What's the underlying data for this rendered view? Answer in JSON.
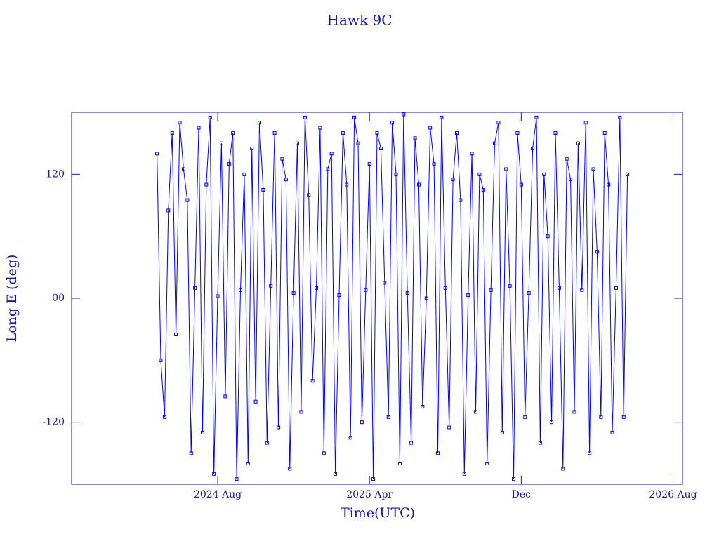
{
  "chart_data": {
    "type": "line",
    "title": "Hawk 9C",
    "x_label": "Time(UTC)",
    "y_label": "Long E (deg)",
    "xlim": [
      -0.7,
      31.5
    ],
    "xticks": [
      {
        "value": 7,
        "label": "2024 Aug"
      },
      {
        "value": 15,
        "label": "2025 Apr"
      },
      {
        "value": 23,
        "label": "Dec"
      },
      {
        "value": 31,
        "label": "2026 Aug"
      }
    ],
    "ylim": [
      -180,
      180
    ],
    "yticks": [
      -120,
      {
        "value": 0,
        "label": "00"
      },
      120
    ],
    "markers": true,
    "x": [
      3.8,
      4,
      4.2,
      4.4,
      4.6,
      4.8,
      5,
      5.2,
      5.4,
      5.6,
      5.8,
      6,
      6.2,
      6.4,
      6.6,
      6.8,
      7,
      7.2,
      7.4,
      7.6,
      7.8,
      8,
      8.2,
      8.4,
      8.6,
      8.8,
      9,
      9.2,
      9.4,
      9.6,
      9.8,
      10,
      10.2,
      10.4,
      10.6,
      10.8,
      11,
      11.2,
      11.4,
      11.6,
      11.8,
      12,
      12.2,
      12.4,
      12.6,
      12.8,
      13,
      13.2,
      13.4,
      13.6,
      13.8,
      14,
      14.2,
      14.4,
      14.6,
      14.8,
      15,
      15.2,
      15.4,
      15.6,
      15.8,
      16,
      16.2,
      16.4,
      16.6,
      16.8,
      17,
      17.2,
      17.4,
      17.6,
      17.8,
      18,
      18.2,
      18.4,
      18.6,
      18.8,
      19,
      19.2,
      19.4,
      19.6,
      19.8,
      20,
      20.2,
      20.4,
      20.6,
      20.8,
      21,
      21.2,
      21.4,
      21.6,
      21.8,
      22,
      22.2,
      22.4,
      22.6,
      22.8,
      23,
      23.2,
      23.4,
      23.6,
      23.8,
      24,
      24.2,
      24.4,
      24.6,
      24.8,
      25,
      25.2,
      25.4,
      25.6,
      25.8,
      26,
      26.2,
      26.4,
      26.6,
      26.8,
      27,
      27.2,
      27.4,
      27.6,
      27.8,
      28,
      28.2,
      28.4,
      28.6
    ],
    "series": [
      {
        "color": "#0000ff",
        "values": [
          140,
          -60,
          -115,
          85,
          160,
          -35,
          170,
          125,
          95,
          -150,
          10,
          165,
          -130,
          110,
          175,
          -170,
          2,
          150,
          -95,
          130,
          160,
          -175,
          8,
          120,
          -160,
          145,
          -100,
          170,
          105,
          -140,
          12,
          160,
          -125,
          135,
          115,
          -165,
          5,
          150,
          -110,
          175,
          100,
          -80,
          10,
          165,
          -150,
          125,
          140,
          -170,
          3,
          160,
          110,
          -135,
          175,
          150,
          -120,
          8,
          130,
          -175,
          160,
          145,
          15,
          -115,
          170,
          120,
          -160,
          178,
          5,
          -140,
          155,
          110,
          -105,
          0,
          165,
          130,
          -150,
          175,
          10,
          -125,
          115,
          160,
          95,
          -170,
          3,
          140,
          -110,
          120,
          105,
          -160,
          8,
          150,
          170,
          -130,
          125,
          12,
          -175,
          160,
          110,
          -115,
          5,
          145,
          175,
          -140,
          120,
          60,
          -120,
          160,
          10,
          -165,
          135,
          115,
          -110,
          150,
          8,
          170,
          -150,
          125,
          45,
          -115,
          160,
          110,
          -130,
          10,
          175,
          -115,
          120
        ]
      }
    ]
  }
}
